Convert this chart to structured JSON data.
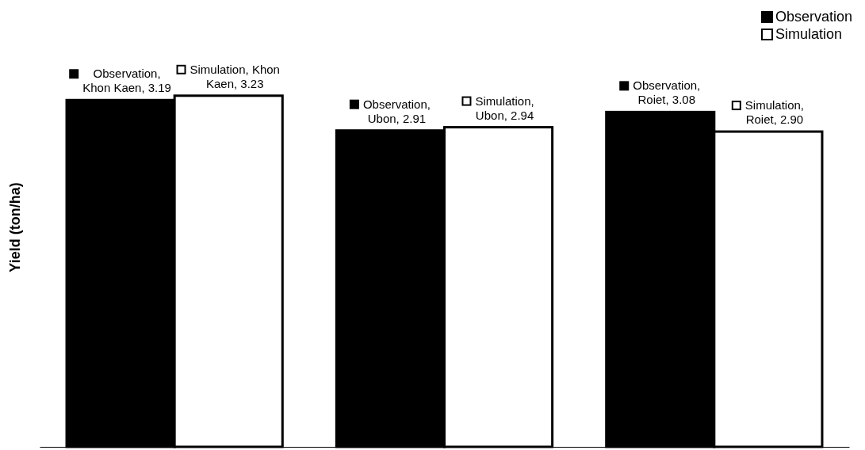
{
  "chart_data": {
    "type": "bar",
    "ylabel": "Yield (ton/ha)",
    "categories": [
      null,
      null,
      null
    ],
    "series": [
      {
        "name": "Observation",
        "color": "#000000",
        "values": [
          3.19,
          2.91,
          3.08
        ],
        "value_labels": [
          "Observation, Khon Kaen, 3.19",
          "Observation, Ubon, 2.91",
          "Observation, Roiet, 3.08"
        ]
      },
      {
        "name": "Simulation",
        "color": "#ffffff",
        "values": [
          3.23,
          2.94,
          2.9
        ],
        "value_labels": [
          "Simulation, Khon Kaen, 3.23",
          "Simulation, Ubon, 2.94",
          "Simulation, Roiet, 2.90"
        ]
      }
    ],
    "grid": false,
    "legend": "top right"
  }
}
